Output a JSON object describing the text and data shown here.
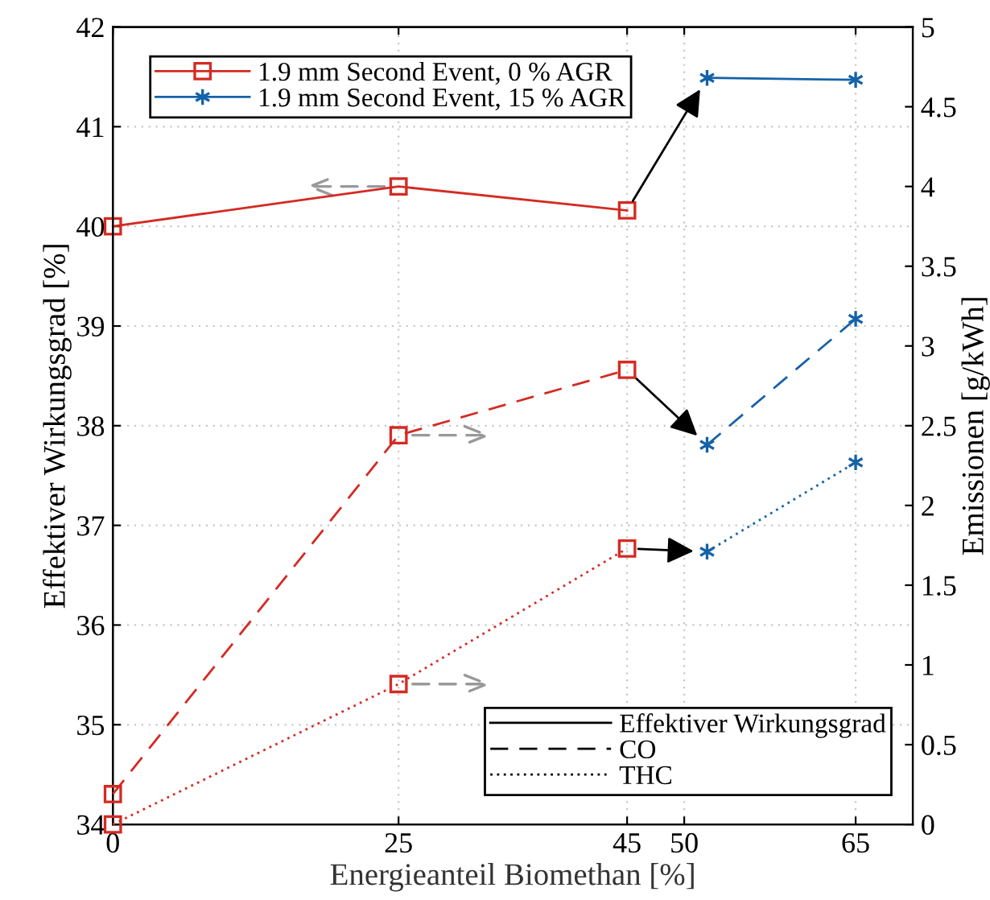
{
  "chart_data": {
    "type": "line",
    "xlabel": "Energieanteil Biomethan [%]",
    "ylabel": "Effektiver Wirkungsgrad [%]",
    "y2label": "Emissionen [g/kWh]",
    "xlim": [
      0,
      70
    ],
    "xticks": [
      0,
      25,
      45,
      50,
      65
    ],
    "ylim": [
      34,
      42
    ],
    "yticks": [
      34,
      35,
      36,
      37,
      38,
      39,
      40,
      41,
      42
    ],
    "y2lim": [
      0,
      5
    ],
    "y2ticks": [
      0,
      0.5,
      1,
      1.5,
      2,
      2.5,
      3,
      3.5,
      4,
      4.5,
      5
    ],
    "grid": true,
    "legend": "top left",
    "series": [
      {
        "name": "1.9 mm Second Event, 0 % AGR",
        "color": "#d42a22",
        "marker": "square",
        "line_style": "solid",
        "axis": "y",
        "x": [
          0,
          25,
          45
        ],
        "values": [
          40.0,
          40.4,
          40.16
        ]
      },
      {
        "name": "1.9 mm Second Event, 15 % AGR",
        "color": "#1462a8",
        "marker": "cross",
        "line_style": "solid",
        "axis": "y",
        "x": [
          52,
          65
        ],
        "values": [
          41.49,
          41.47
        ]
      },
      {
        "color": "#d42a22",
        "marker": "square",
        "line_style": "dashed",
        "axis": "y2",
        "x": [
          0,
          25,
          45
        ],
        "values": [
          0.19,
          2.44,
          2.85
        ]
      },
      {
        "color": "#1462a8",
        "marker": "cross",
        "line_style": "dashed",
        "axis": "y2",
        "x": [
          52,
          65
        ],
        "values": [
          2.38,
          3.17
        ]
      },
      {
        "color": "#d42a22",
        "marker": "square",
        "line_style": "dotted",
        "axis": "y2",
        "x": [
          0,
          25,
          45
        ],
        "values": [
          0.0,
          0.88,
          1.73
        ]
      },
      {
        "color": "#1462a8",
        "marker": "cross",
        "line_style": "dotted",
        "axis": "y2",
        "x": [
          52,
          65
        ],
        "values": [
          1.71,
          2.27
        ]
      },
      {
        "name": "Effektiver Wirkungsgrad",
        "color": "#000000",
        "line_style": "solid"
      },
      {
        "name": "CO",
        "color": "#000000",
        "line_style": "dashed"
      },
      {
        "name": "THC",
        "color": "#000000",
        "line_style": "dotted"
      }
    ]
  }
}
